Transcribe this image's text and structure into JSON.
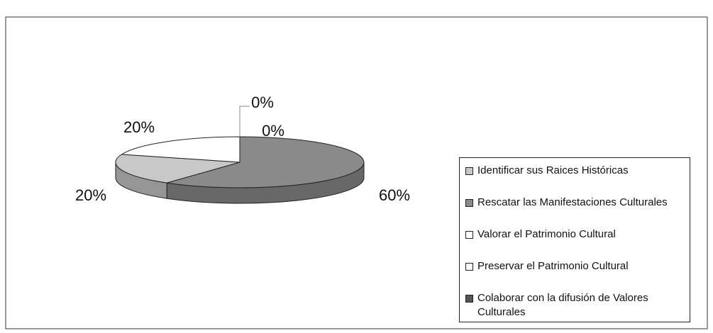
{
  "chart_data": {
    "type": "pie3d",
    "categories": [
      "Identificar sus Raices Históricas",
      "Rescatar las Manifestaciones Culturales",
      "Valorar el Patrimonio Cultural",
      "Preservar el Patrimonio Cultural",
      "Colaborar con la difusión de Valores Culturales"
    ],
    "values": [
      20,
      60,
      20,
      0,
      0
    ],
    "value_labels": [
      "20%",
      "60%",
      "20%",
      "0%",
      "0%"
    ],
    "colors": [
      "#c8c8c8",
      "#8a8a8a",
      "#ffffff",
      "#ffffff",
      "#555555"
    ],
    "legend": "right"
  }
}
